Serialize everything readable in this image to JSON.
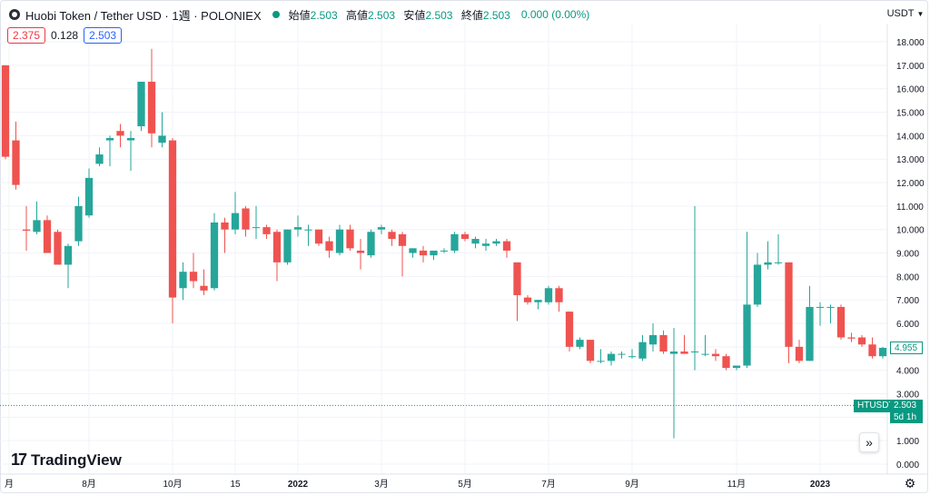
{
  "header": {
    "symbol": "Huobi Token / Tether USD · 1週 · POLONIEX",
    "open_label": "始値",
    "open": "2.503",
    "high_label": "高値",
    "high": "2.503",
    "low_label": "安値",
    "low": "2.503",
    "close_label": "終値",
    "close": "2.503",
    "change": "0.000 (0.00%)",
    "symbol_icon": "token-icon",
    "status_color": "#089981"
  },
  "indicators": {
    "a": "2.375",
    "b": "0.128",
    "c": "2.503"
  },
  "currency": "USDT",
  "price_tags": {
    "last": "4.955",
    "symbol": "HTUSDT",
    "current": "2.503",
    "countdown": "5d 1h"
  },
  "logo": {
    "icon": "17",
    "text": "TradingView"
  },
  "scroll_icon": "double-chevron-right-icon",
  "settings_icon": "gear-icon",
  "chart_data": {
    "type": "candlestick",
    "up_color": "#26a69a",
    "down_color": "#ef5350",
    "y_ticks": [
      "0.000",
      "1.000",
      "2.000",
      "3.000",
      "4.000",
      "5.000",
      "6.000",
      "7.000",
      "8.000",
      "9.000",
      "10.000",
      "11.000",
      "12.000",
      "13.000",
      "14.000",
      "15.000",
      "16.000",
      "17.000",
      "18.000"
    ],
    "ylim": [
      -0.2,
      18.6
    ],
    "x_labels": [
      "月",
      "8月",
      "10月",
      "15",
      "2022",
      "3月",
      "5月",
      "7月",
      "9月",
      "11月",
      "2023"
    ],
    "current_price_line": 2.503,
    "candles": [
      {
        "o": 17.0,
        "h": 17.0,
        "l": 13.0,
        "c": 13.1
      },
      {
        "o": 13.8,
        "h": 14.6,
        "l": 11.7,
        "c": 11.9
      },
      {
        "o": 10.0,
        "h": 11.0,
        "l": 9.1,
        "c": 9.95
      },
      {
        "o": 9.9,
        "h": 11.2,
        "l": 9.8,
        "c": 10.4
      },
      {
        "o": 10.4,
        "h": 10.6,
        "l": 9.0,
        "c": 9.0
      },
      {
        "o": 9.9,
        "h": 10.0,
        "l": 8.5,
        "c": 8.5
      },
      {
        "o": 8.5,
        "h": 9.4,
        "l": 7.5,
        "c": 9.3
      },
      {
        "o": 9.5,
        "h": 11.4,
        "l": 9.3,
        "c": 11.0
      },
      {
        "o": 10.6,
        "h": 12.6,
        "l": 10.5,
        "c": 12.2
      },
      {
        "o": 12.8,
        "h": 13.5,
        "l": 12.7,
        "c": 13.2
      },
      {
        "o": 13.8,
        "h": 14.0,
        "l": 12.7,
        "c": 13.9
      },
      {
        "o": 14.2,
        "h": 14.5,
        "l": 13.5,
        "c": 14.0
      },
      {
        "o": 13.8,
        "h": 14.2,
        "l": 12.5,
        "c": 13.9
      },
      {
        "o": 14.4,
        "h": 16.3,
        "l": 14.2,
        "c": 16.3
      },
      {
        "o": 16.3,
        "h": 17.7,
        "l": 13.5,
        "c": 14.1
      },
      {
        "o": 13.7,
        "h": 15.0,
        "l": 13.5,
        "c": 14.0
      },
      {
        "o": 13.8,
        "h": 13.9,
        "l": 6.0,
        "c": 7.1
      },
      {
        "o": 7.5,
        "h": 8.6,
        "l": 7.0,
        "c": 8.2
      },
      {
        "o": 8.2,
        "h": 9.0,
        "l": 7.5,
        "c": 7.8
      },
      {
        "o": 7.6,
        "h": 8.3,
        "l": 7.2,
        "c": 7.4
      },
      {
        "o": 7.5,
        "h": 10.7,
        "l": 7.4,
        "c": 10.3
      },
      {
        "o": 10.3,
        "h": 10.5,
        "l": 9.0,
        "c": 10.0
      },
      {
        "o": 10.0,
        "h": 11.6,
        "l": 9.8,
        "c": 10.7
      },
      {
        "o": 10.9,
        "h": 11.0,
        "l": 9.7,
        "c": 10.0
      },
      {
        "o": 10.1,
        "h": 11.0,
        "l": 9.6,
        "c": 10.1
      },
      {
        "o": 10.1,
        "h": 10.2,
        "l": 9.6,
        "c": 9.8
      },
      {
        "o": 9.9,
        "h": 10.0,
        "l": 7.8,
        "c": 8.6
      },
      {
        "o": 8.6,
        "h": 10.0,
        "l": 8.5,
        "c": 10.0
      },
      {
        "o": 10.0,
        "h": 10.6,
        "l": 9.7,
        "c": 10.1
      },
      {
        "o": 10.0,
        "h": 10.2,
        "l": 9.3,
        "c": 10.0
      },
      {
        "o": 10.0,
        "h": 10.0,
        "l": 9.3,
        "c": 9.4
      },
      {
        "o": 9.5,
        "h": 9.7,
        "l": 8.8,
        "c": 9.1
      },
      {
        "o": 9.0,
        "h": 10.2,
        "l": 8.9,
        "c": 10.0
      },
      {
        "o": 10.0,
        "h": 10.2,
        "l": 9.1,
        "c": 9.2
      },
      {
        "o": 9.1,
        "h": 9.6,
        "l": 8.3,
        "c": 9.0
      },
      {
        "o": 8.9,
        "h": 10.0,
        "l": 8.8,
        "c": 9.9
      },
      {
        "o": 10.0,
        "h": 10.2,
        "l": 9.8,
        "c": 10.1
      },
      {
        "o": 9.9,
        "h": 10.0,
        "l": 9.3,
        "c": 9.6
      },
      {
        "o": 9.8,
        "h": 9.9,
        "l": 8.0,
        "c": 9.3
      },
      {
        "o": 9.0,
        "h": 9.2,
        "l": 8.8,
        "c": 9.2
      },
      {
        "o": 9.1,
        "h": 9.3,
        "l": 8.6,
        "c": 8.9
      },
      {
        "o": 8.9,
        "h": 9.1,
        "l": 8.7,
        "c": 9.1
      },
      {
        "o": 9.1,
        "h": 9.2,
        "l": 9.0,
        "c": 9.1
      },
      {
        "o": 9.1,
        "h": 9.9,
        "l": 9.0,
        "c": 9.8
      },
      {
        "o": 9.8,
        "h": 9.9,
        "l": 9.5,
        "c": 9.6
      },
      {
        "o": 9.4,
        "h": 9.7,
        "l": 9.2,
        "c": 9.6
      },
      {
        "o": 9.3,
        "h": 9.6,
        "l": 9.1,
        "c": 9.4
      },
      {
        "o": 9.4,
        "h": 9.6,
        "l": 9.3,
        "c": 9.5
      },
      {
        "o": 9.5,
        "h": 9.6,
        "l": 8.8,
        "c": 9.1
      },
      {
        "o": 8.6,
        "h": 8.6,
        "l": 6.1,
        "c": 7.2
      },
      {
        "o": 7.1,
        "h": 7.2,
        "l": 6.8,
        "c": 6.9
      },
      {
        "o": 6.9,
        "h": 7.0,
        "l": 6.6,
        "c": 7.0
      },
      {
        "o": 6.9,
        "h": 7.6,
        "l": 6.8,
        "c": 7.5
      },
      {
        "o": 7.5,
        "h": 7.6,
        "l": 6.5,
        "c": 6.9
      },
      {
        "o": 6.5,
        "h": 6.5,
        "l": 4.8,
        "c": 5.0
      },
      {
        "o": 5.0,
        "h": 5.4,
        "l": 4.9,
        "c": 5.3
      },
      {
        "o": 5.3,
        "h": 5.3,
        "l": 4.3,
        "c": 4.4
      },
      {
        "o": 4.4,
        "h": 4.9,
        "l": 4.3,
        "c": 4.4
      },
      {
        "o": 4.4,
        "h": 4.8,
        "l": 4.2,
        "c": 4.7
      },
      {
        "o": 4.7,
        "h": 4.8,
        "l": 4.5,
        "c": 4.7
      },
      {
        "o": 4.6,
        "h": 4.9,
        "l": 4.5,
        "c": 4.6
      },
      {
        "o": 4.5,
        "h": 5.5,
        "l": 4.4,
        "c": 5.2
      },
      {
        "o": 5.1,
        "h": 6.0,
        "l": 4.8,
        "c": 5.5
      },
      {
        "o": 5.5,
        "h": 5.7,
        "l": 4.7,
        "c": 4.8
      },
      {
        "o": 4.7,
        "h": 5.8,
        "l": 1.1,
        "c": 4.8
      },
      {
        "o": 4.8,
        "h": 5.5,
        "l": 4.7,
        "c": 4.7
      },
      {
        "o": 4.8,
        "h": 11.0,
        "l": 4.0,
        "c": 4.8
      },
      {
        "o": 4.7,
        "h": 5.5,
        "l": 4.6,
        "c": 4.7
      },
      {
        "o": 4.7,
        "h": 4.9,
        "l": 4.4,
        "c": 4.6
      },
      {
        "o": 4.6,
        "h": 4.7,
        "l": 4.0,
        "c": 4.1
      },
      {
        "o": 4.1,
        "h": 4.2,
        "l": 4.0,
        "c": 4.2
      },
      {
        "o": 4.2,
        "h": 9.9,
        "l": 4.1,
        "c": 6.8
      },
      {
        "o": 6.8,
        "h": 9.0,
        "l": 6.7,
        "c": 8.5
      },
      {
        "o": 8.5,
        "h": 9.5,
        "l": 8.3,
        "c": 8.6
      },
      {
        "o": 8.6,
        "h": 9.8,
        "l": 8.5,
        "c": 8.6
      },
      {
        "o": 8.6,
        "h": 8.6,
        "l": 4.3,
        "c": 5.0
      },
      {
        "o": 5.0,
        "h": 5.3,
        "l": 4.3,
        "c": 4.4
      },
      {
        "o": 4.4,
        "h": 7.6,
        "l": 4.4,
        "c": 6.7
      },
      {
        "o": 6.7,
        "h": 6.9,
        "l": 5.9,
        "c": 6.7
      },
      {
        "o": 6.7,
        "h": 6.8,
        "l": 6.0,
        "c": 6.7
      },
      {
        "o": 6.7,
        "h": 6.8,
        "l": 5.3,
        "c": 5.4
      },
      {
        "o": 5.4,
        "h": 5.6,
        "l": 5.2,
        "c": 5.35
      },
      {
        "o": 5.4,
        "h": 5.5,
        "l": 5.0,
        "c": 5.1
      },
      {
        "o": 5.1,
        "h": 5.4,
        "l": 4.5,
        "c": 4.6
      },
      {
        "o": 4.6,
        "h": 5.0,
        "l": 4.5,
        "c": 4.955
      }
    ]
  }
}
